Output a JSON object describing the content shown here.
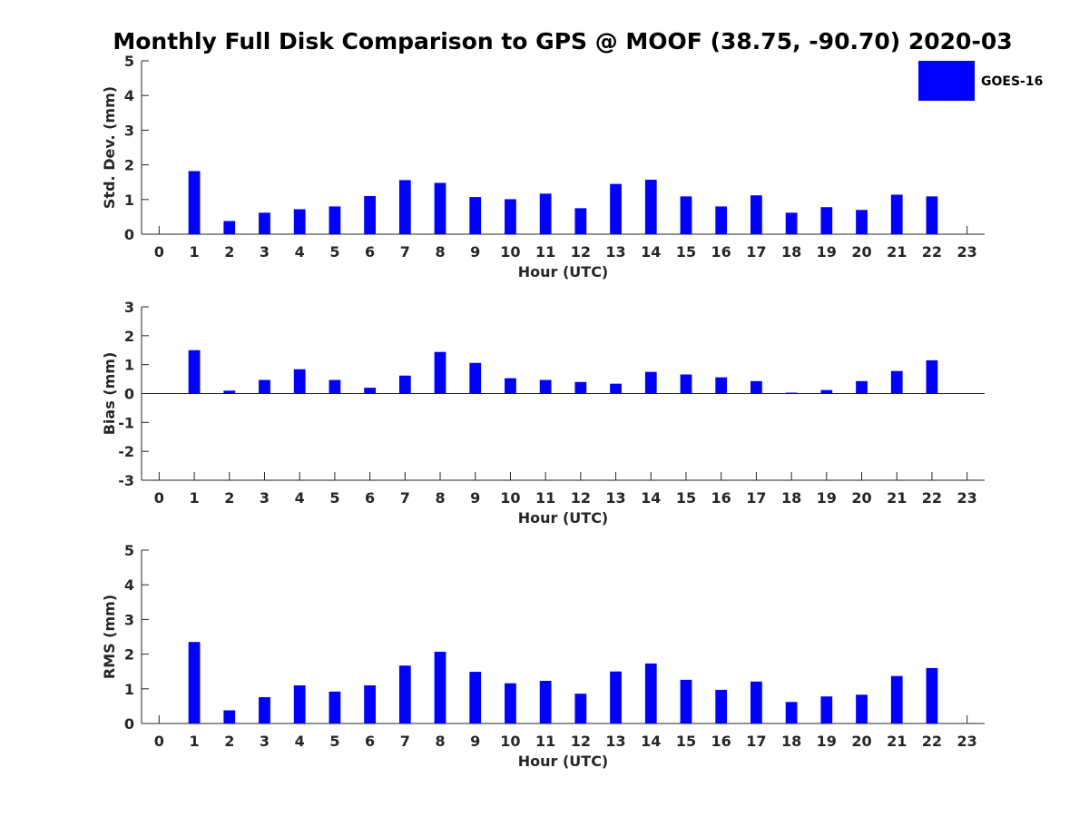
{
  "title": "Monthly Full Disk Comparison to GPS @ MOOF (38.75, -90.70) 2020-03",
  "legend": {
    "label": "GOES-16",
    "color": "#0000ff",
    "placement": "top-right"
  },
  "chart_data": [
    {
      "type": "bar",
      "title": "Monthly Full Disk Comparison to GPS @ MOOF (38.75, -90.70) 2020-03",
      "series_name": "GOES-16",
      "xlabel": "Hour (UTC)",
      "ylabel": "Std. Dev. (mm)",
      "categories": [
        "0",
        "1",
        "2",
        "3",
        "4",
        "5",
        "6",
        "7",
        "8",
        "9",
        "10",
        "11",
        "12",
        "13",
        "14",
        "15",
        "16",
        "17",
        "18",
        "19",
        "20",
        "21",
        "22",
        "23"
      ],
      "values": [
        null,
        1.82,
        0.38,
        0.62,
        0.72,
        0.8,
        1.1,
        1.56,
        1.48,
        1.07,
        1.01,
        1.17,
        0.75,
        1.45,
        1.57,
        1.09,
        0.8,
        1.12,
        0.62,
        0.78,
        0.7,
        1.14,
        1.09,
        null
      ],
      "ylim": [
        0,
        5
      ],
      "yticks": [
        0,
        1,
        2,
        3,
        4,
        5
      ],
      "ytick_labels": [
        "0",
        "1",
        "2",
        "3",
        "4",
        "5"
      ],
      "color": "#0000ff"
    },
    {
      "type": "bar",
      "series_name": "GOES-16",
      "xlabel": "Hour (UTC)",
      "ylabel": "Bias (mm)",
      "categories": [
        "0",
        "1",
        "2",
        "3",
        "4",
        "5",
        "6",
        "7",
        "8",
        "9",
        "10",
        "11",
        "12",
        "13",
        "14",
        "15",
        "16",
        "17",
        "18",
        "19",
        "20",
        "21",
        "22",
        "23"
      ],
      "values": [
        null,
        1.5,
        0.1,
        0.47,
        0.84,
        0.47,
        0.2,
        0.62,
        1.44,
        1.06,
        0.53,
        0.47,
        0.4,
        0.34,
        0.75,
        0.66,
        0.56,
        0.43,
        0.03,
        0.12,
        0.43,
        0.78,
        1.15,
        null
      ],
      "ylim": [
        -3,
        3
      ],
      "yticks": [
        -3,
        -2,
        -1,
        0,
        1,
        2,
        3
      ],
      "ytick_labels": [
        "-3",
        "-2",
        "-1",
        "0",
        "1",
        "2",
        "3"
      ],
      "zero_line": true,
      "color": "#0000ff"
    },
    {
      "type": "bar",
      "series_name": "GOES-16",
      "xlabel": "Hour (UTC)",
      "ylabel": "RMS (mm)",
      "categories": [
        "0",
        "1",
        "2",
        "3",
        "4",
        "5",
        "6",
        "7",
        "8",
        "9",
        "10",
        "11",
        "12",
        "13",
        "14",
        "15",
        "16",
        "17",
        "18",
        "19",
        "20",
        "21",
        "22",
        "23"
      ],
      "values": [
        null,
        2.35,
        0.38,
        0.76,
        1.1,
        0.92,
        1.1,
        1.67,
        2.07,
        1.49,
        1.16,
        1.23,
        0.86,
        1.5,
        1.73,
        1.26,
        0.97,
        1.21,
        0.62,
        0.78,
        0.83,
        1.37,
        1.6,
        null
      ],
      "ylim": [
        0,
        5
      ],
      "yticks": [
        0,
        1,
        2,
        3,
        4,
        5
      ],
      "ytick_labels": [
        "0",
        "1",
        "2",
        "3",
        "4",
        "5"
      ],
      "color": "#0000ff"
    }
  ]
}
